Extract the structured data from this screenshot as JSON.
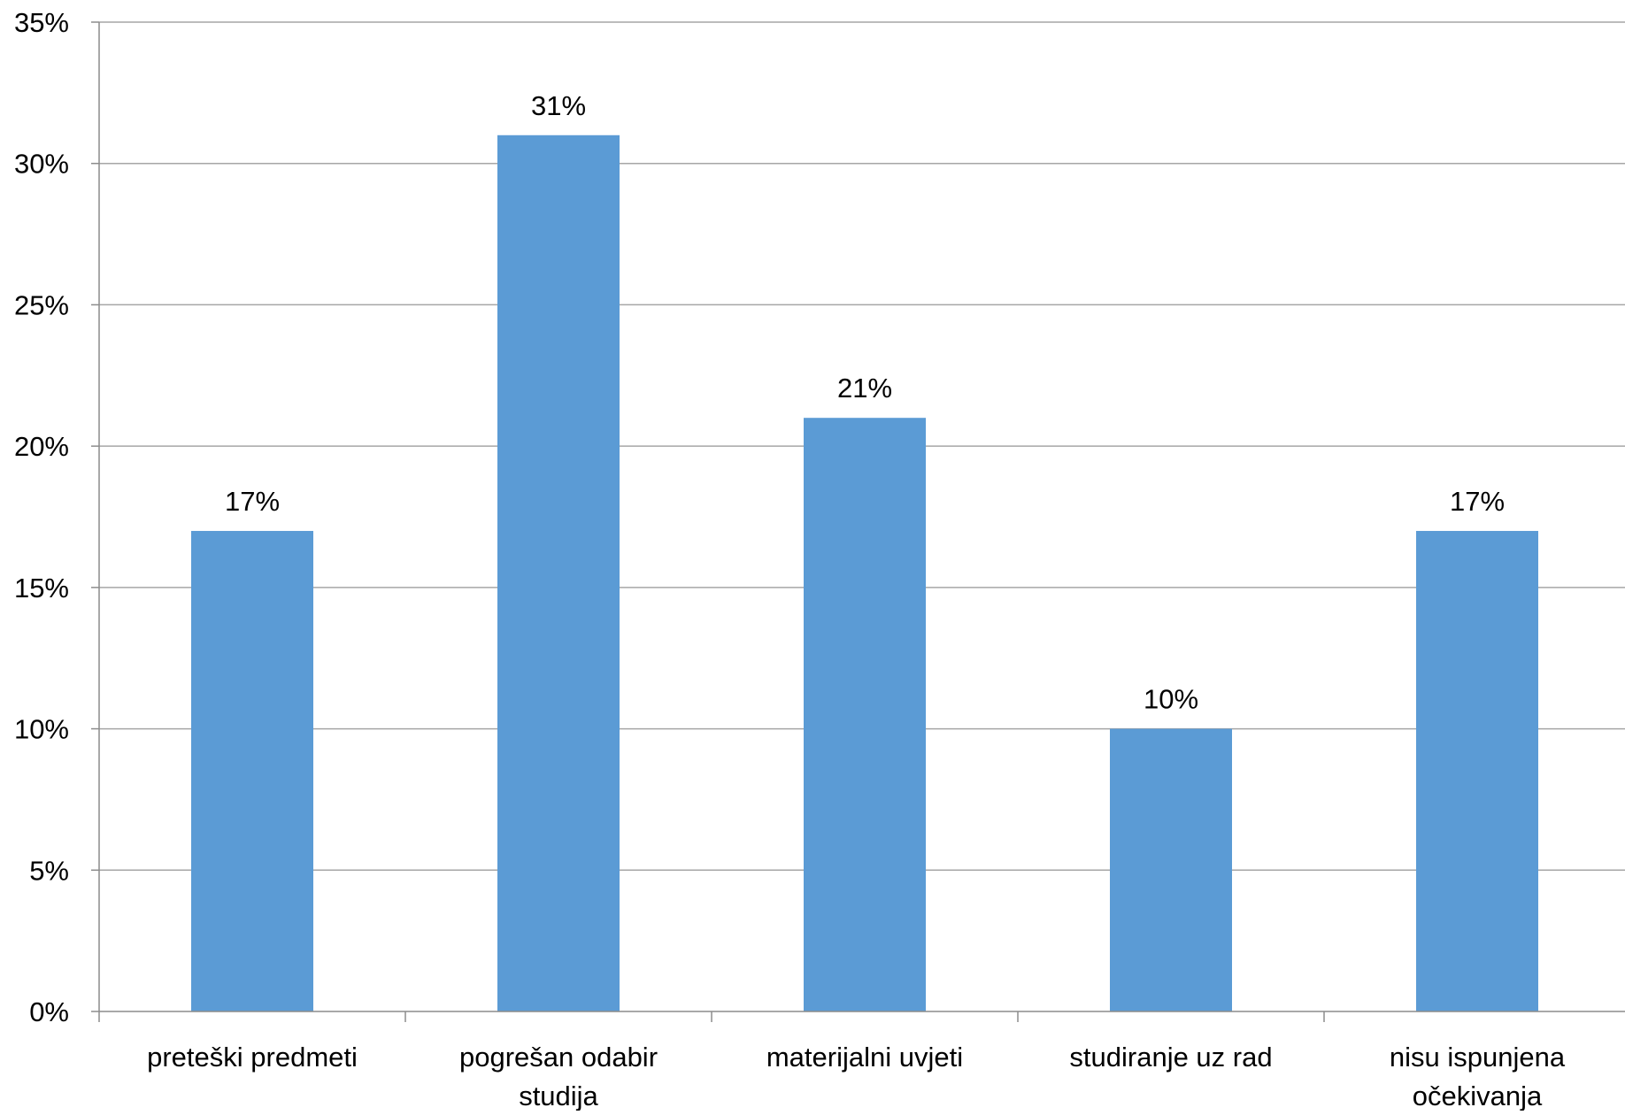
{
  "chart_data": {
    "type": "bar",
    "categories": [
      [
        "preteški predmeti"
      ],
      [
        "pogrešan odabir",
        "studija"
      ],
      [
        "materijalni uvjeti"
      ],
      [
        "studiranje uz rad"
      ],
      [
        "nisu ispunjena",
        "očekivanja"
      ]
    ],
    "values": [
      17,
      31,
      21,
      10,
      17
    ],
    "data_labels": [
      "17%",
      "31%",
      "21%",
      "10%",
      "17%"
    ],
    "ylim": [
      0,
      35
    ],
    "yticks": [
      0,
      5,
      10,
      15,
      20,
      25,
      30,
      35
    ],
    "ytick_labels": [
      "0%",
      "5%",
      "10%",
      "15%",
      "20%",
      "25%",
      "30%",
      "35%"
    ],
    "title": "",
    "xlabel": "",
    "ylabel": "",
    "grid": true,
    "legend": false,
    "colors": {
      "bar": "#5B9BD5",
      "grid": "#A6A6A6",
      "axis": "#8C8C8C",
      "text": "#000000"
    }
  }
}
